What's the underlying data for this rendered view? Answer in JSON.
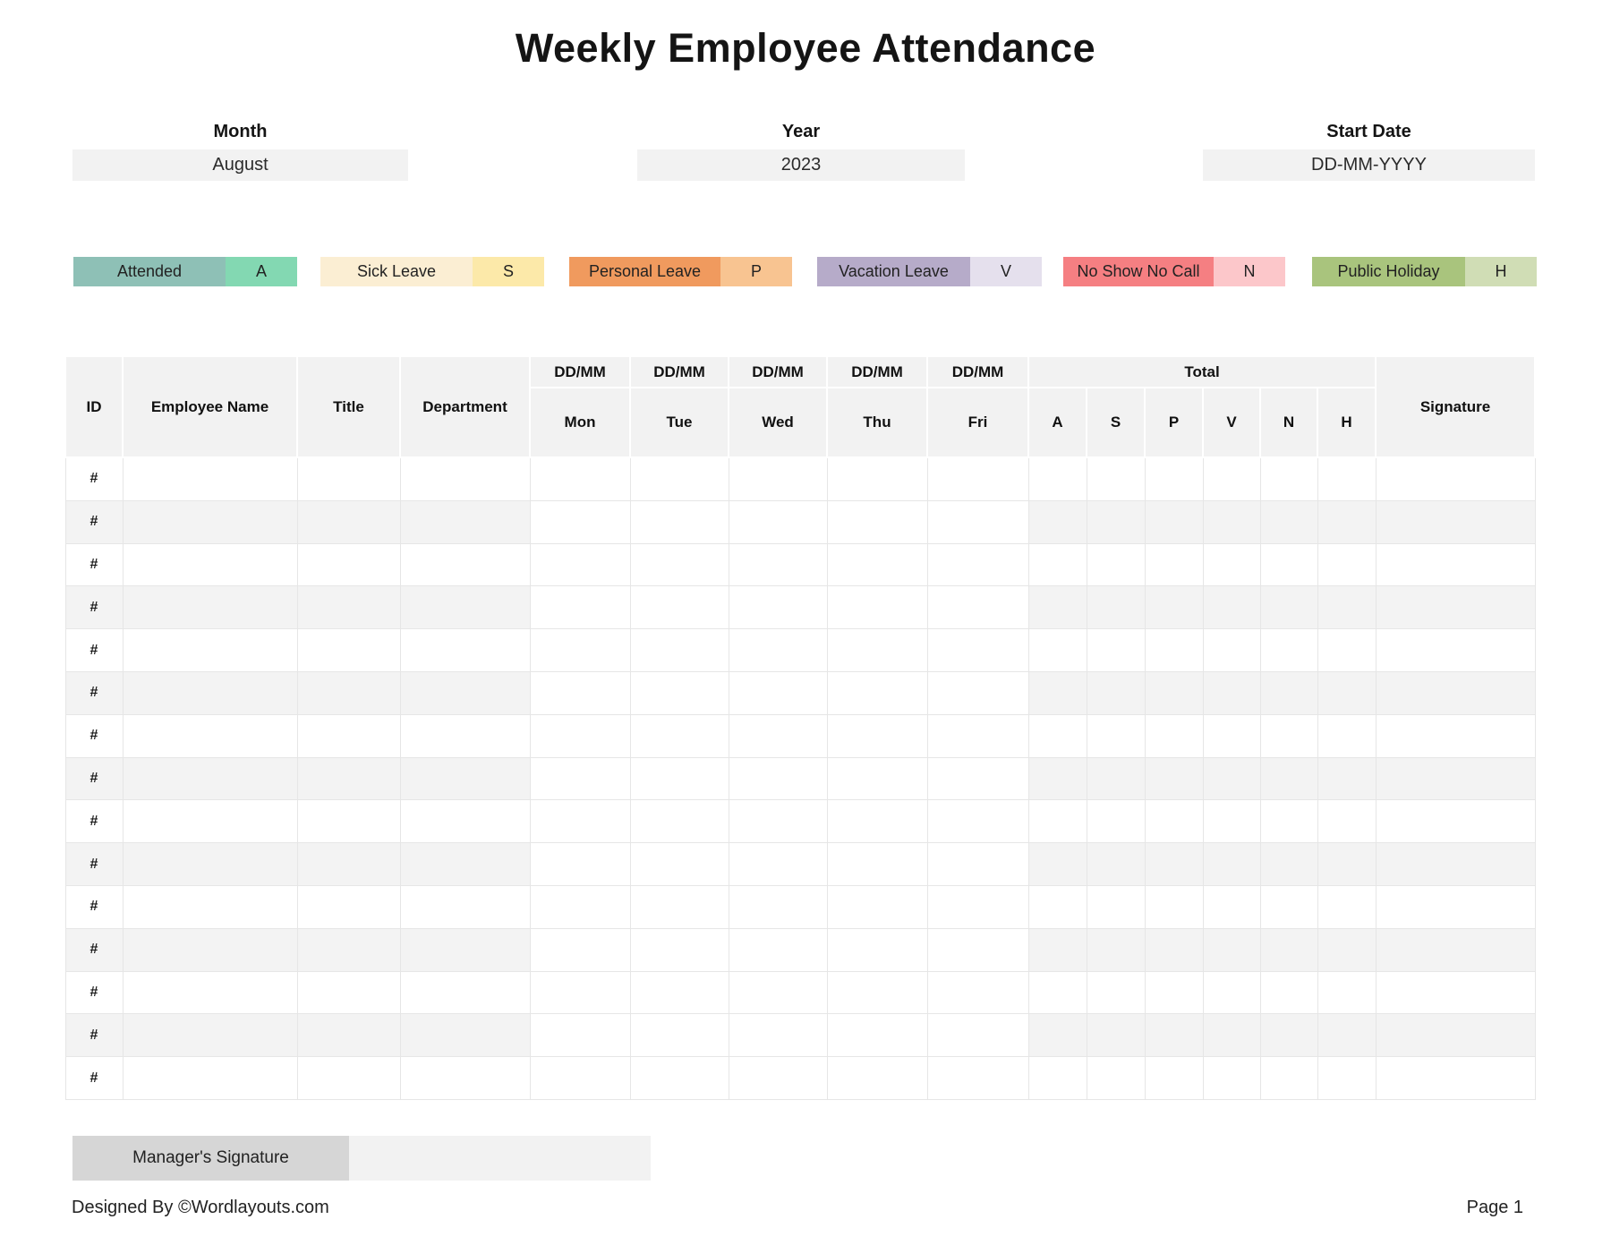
{
  "title": "Weekly Employee Attendance",
  "fields": {
    "month": {
      "label": "Month",
      "value": "August"
    },
    "year": {
      "label": "Year",
      "value": "2023"
    },
    "start_date": {
      "label": "Start Date",
      "value": "DD-MM-YYYY"
    }
  },
  "legend": [
    {
      "label": "Attended",
      "code": "A",
      "label_color": "#8ec0b6",
      "code_color": "#83d8b2"
    },
    {
      "label": "Sick Leave",
      "code": "S",
      "label_color": "#fbeed3",
      "code_color": "#fce9a9"
    },
    {
      "label": "Personal Leave",
      "code": "P",
      "label_color": "#f09a5e",
      "code_color": "#f8c491"
    },
    {
      "label": "Vacation Leave",
      "code": "V",
      "label_color": "#b6abc9",
      "code_color": "#e5e0ed"
    },
    {
      "label": "No Show No Call",
      "code": "N",
      "label_color": "#f57f82",
      "code_color": "#fcc7ca"
    },
    {
      "label": "Public Holiday",
      "code": "H",
      "label_color": "#a9c47d",
      "code_color": "#d0ddb5"
    }
  ],
  "table": {
    "columns": {
      "id": "ID",
      "employee_name": "Employee Name",
      "title": "Title",
      "department": "Department",
      "date_placeholder": "DD/MM",
      "days": [
        "Mon",
        "Tue",
        "Wed",
        "Thu",
        "Fri"
      ],
      "total": "Total",
      "total_codes": [
        "A",
        "S",
        "P",
        "V",
        "N",
        "H"
      ],
      "signature": "Signature"
    },
    "rows": [
      {
        "id": "#"
      },
      {
        "id": "#"
      },
      {
        "id": "#"
      },
      {
        "id": "#"
      },
      {
        "id": "#"
      },
      {
        "id": "#"
      },
      {
        "id": "#"
      },
      {
        "id": "#"
      },
      {
        "id": "#"
      },
      {
        "id": "#"
      },
      {
        "id": "#"
      },
      {
        "id": "#"
      },
      {
        "id": "#"
      },
      {
        "id": "#"
      },
      {
        "id": "#"
      }
    ]
  },
  "manager": {
    "signature_label": "Manager's Signature"
  },
  "footer": {
    "left": "Designed By ©Wordlayouts.com",
    "right": "Page 1"
  }
}
